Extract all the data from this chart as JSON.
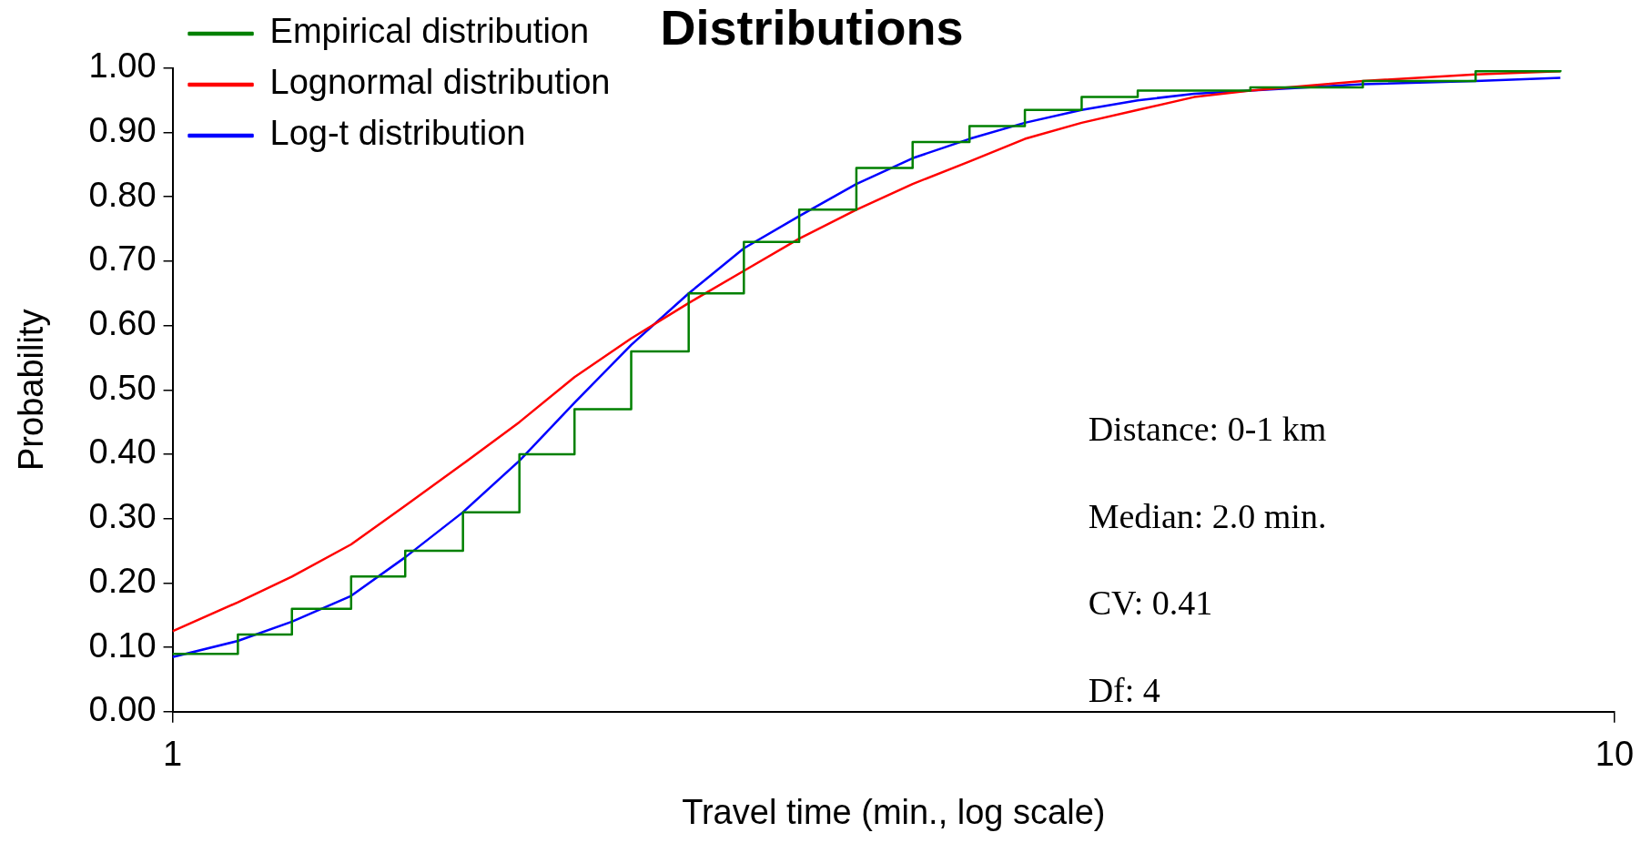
{
  "chart_data": {
    "type": "line",
    "title": "Distributions",
    "xlabel": "Travel time (min., log scale)",
    "ylabel": "Probability",
    "log": "x",
    "grid": false,
    "legend": "top left",
    "marker": "none",
    "line_style": "solid",
    "xlim": [
      1,
      10
    ],
    "xticks": [
      1,
      10
    ],
    "ylim": [
      0,
      1
    ],
    "yticks": [
      {
        "value": 0,
        "label": "0.00"
      },
      {
        "value": 0.1,
        "label": "0.10"
      },
      {
        "value": 0.2,
        "label": "0.20"
      },
      {
        "value": 0.3,
        "label": "0.30"
      },
      {
        "value": 0.4,
        "label": "0.40"
      },
      {
        "value": 0.5,
        "label": "0.50"
      },
      {
        "value": 0.6,
        "label": "0.60"
      },
      {
        "value": 0.7,
        "label": "0.70"
      },
      {
        "value": 0.8,
        "label": "0.80"
      },
      {
        "value": 0.9,
        "label": "0.90"
      },
      {
        "value": 1,
        "label": "1.00"
      }
    ],
    "x": [
      1,
      1.11,
      1.21,
      1.33,
      1.45,
      1.59,
      1.74,
      1.9,
      2.08,
      2.28,
      2.49,
      2.72,
      2.98,
      3.26,
      3.57,
      3.9,
      4.27,
      4.67,
      5.11,
      5.59,
      6.69,
      8.01,
      9.17
    ],
    "series": [
      {
        "name": "Empirical distribution",
        "type": "step",
        "color": "#008000",
        "values": [
          0.09,
          0.12,
          0.16,
          0.21,
          0.25,
          0.31,
          0.4,
          0.47,
          0.56,
          0.65,
          0.73,
          0.78,
          0.845,
          0.885,
          0.91,
          0.935,
          0.955,
          0.965,
          0.965,
          0.97,
          0.98,
          0.995,
          0.997
        ]
      },
      {
        "name": "Lognormal distribution",
        "color": "#ff0000",
        "values": [
          0.125,
          0.17,
          0.21,
          0.26,
          0.32,
          0.385,
          0.45,
          0.52,
          0.58,
          0.635,
          0.685,
          0.735,
          0.78,
          0.82,
          0.855,
          0.89,
          0.915,
          0.935,
          0.955,
          0.965,
          0.98,
          0.99,
          0.995
        ]
      },
      {
        "name": "Log-t distribution",
        "color": "#0000ff",
        "values": [
          0.085,
          0.11,
          0.14,
          0.18,
          0.24,
          0.31,
          0.39,
          0.48,
          0.57,
          0.65,
          0.72,
          0.77,
          0.82,
          0.86,
          0.89,
          0.915,
          0.935,
          0.95,
          0.96,
          0.965,
          0.975,
          0.98,
          0.985
        ]
      }
    ],
    "annotations": [
      "Distance: 0-1 km",
      "Median: 2.0 min.",
      "CV: 0.41",
      "Df: 4"
    ]
  }
}
